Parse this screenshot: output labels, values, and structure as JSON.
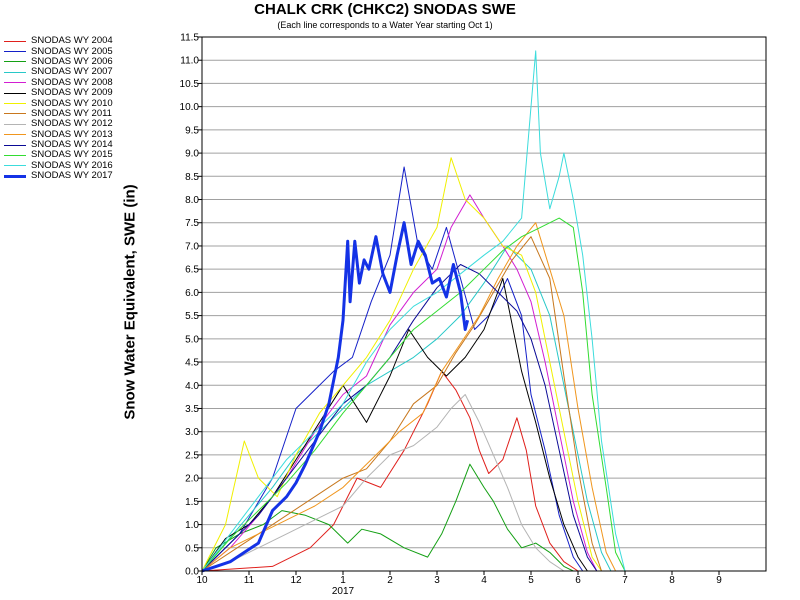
{
  "chart_data": {
    "type": "line",
    "title": "CHALK CRK (CHKC2) SNODAS SWE",
    "subtitle": "(Each line corresponds to a Water Year starting Oct 1)",
    "ylabel": "Snow Water Equivalent, SWE (in)",
    "xlabel": "",
    "ylim": [
      0,
      11.5
    ],
    "yticks": [
      "0.0",
      "0.5",
      "1.0",
      "1.5",
      "2.0",
      "2.5",
      "3.0",
      "3.5",
      "4.0",
      "4.5",
      "5.0",
      "5.5",
      "6.0",
      "6.5",
      "7.0",
      "7.5",
      "8.0",
      "8.5",
      "9.0",
      "9.5",
      "10.0",
      "10.5",
      "11.0",
      "11.5"
    ],
    "xlim": [
      10,
      22
    ],
    "xticks": [
      {
        "x": 10,
        "label": "10"
      },
      {
        "x": 11,
        "label": "11"
      },
      {
        "x": 12,
        "label": "12"
      },
      {
        "x": 13,
        "label": "1"
      },
      {
        "x": 14,
        "label": "2"
      },
      {
        "x": 15,
        "label": "3"
      },
      {
        "x": 16,
        "label": "4"
      },
      {
        "x": 17,
        "label": "5"
      },
      {
        "x": 18,
        "label": "6"
      },
      {
        "x": 19,
        "label": "7"
      },
      {
        "x": 20,
        "label": "8"
      },
      {
        "x": 21,
        "label": "9"
      }
    ],
    "year_label": "2017",
    "grid": true,
    "legend_position": "top-left, outside plot",
    "series": [
      {
        "name": "SNODAS WY 2004",
        "color": "#e0201c",
        "width": 1,
        "x": [
          10,
          11.5,
          12.3,
          12.8,
          13.3,
          13.8,
          14.3,
          14.8,
          15.1,
          15.4,
          15.7,
          15.9,
          16.1,
          16.4,
          16.7,
          16.9,
          17.1,
          17.4,
          17.7,
          18.0
        ],
        "y": [
          0,
          0.1,
          0.5,
          1.0,
          2.0,
          1.8,
          2.6,
          3.6,
          4.3,
          3.9,
          3.3,
          2.6,
          2.1,
          2.4,
          3.3,
          2.6,
          1.4,
          0.6,
          0.2,
          0
        ]
      },
      {
        "name": "SNODAS WY 2005",
        "color": "#1420c8",
        "width": 1,
        "x": [
          10,
          10.8,
          11.5,
          12.0,
          12.4,
          12.8,
          13.2,
          13.6,
          14.0,
          14.3,
          14.6,
          14.9,
          15.2,
          15.5,
          15.8,
          16.1,
          16.5,
          16.8,
          17.0,
          17.3,
          17.6,
          17.9,
          18.1
        ],
        "y": [
          0,
          0.8,
          2.0,
          3.5,
          3.9,
          4.3,
          4.6,
          5.8,
          6.8,
          8.7,
          7.0,
          6.5,
          7.4,
          6.3,
          5.2,
          5.5,
          6.3,
          5.5,
          3.8,
          2.6,
          1.2,
          0.3,
          0
        ]
      },
      {
        "name": "SNODAS WY 2006",
        "color": "#14a014",
        "width": 1,
        "x": [
          10,
          10.3,
          10.8,
          11.3,
          11.7,
          12.2,
          12.7,
          13.1,
          13.4,
          13.8,
          14.3,
          14.8,
          15.1,
          15.4,
          15.7,
          16.0,
          16.2,
          16.5,
          16.8,
          17.1,
          17.4,
          17.7,
          17.9
        ],
        "y": [
          0,
          0.5,
          0.8,
          1.0,
          1.3,
          1.2,
          1.0,
          0.6,
          0.9,
          0.8,
          0.5,
          0.3,
          0.8,
          1.5,
          2.3,
          1.8,
          1.5,
          0.9,
          0.5,
          0.6,
          0.4,
          0.1,
          0
        ]
      },
      {
        "name": "SNODAS WY 2007",
        "color": "#28c8c8",
        "width": 1,
        "x": [
          10,
          10.5,
          11.0,
          11.5,
          12.0,
          12.5,
          13.0,
          13.5,
          14.0,
          14.5,
          15.0,
          15.5,
          16.0,
          16.5,
          17.0,
          17.4,
          17.8,
          18.2,
          18.5,
          18.7
        ],
        "y": [
          0,
          0.6,
          1.2,
          1.8,
          2.5,
          3.0,
          3.5,
          4.0,
          4.3,
          4.6,
          5.0,
          5.5,
          6.2,
          7.0,
          6.5,
          5.5,
          3.5,
          1.5,
          0.4,
          0
        ]
      },
      {
        "name": "SNODAS WY 2008",
        "color": "#d21ed2",
        "width": 1,
        "x": [
          10,
          10.6,
          11.2,
          11.8,
          12.4,
          13.0,
          13.5,
          14.0,
          14.5,
          15.0,
          15.3,
          15.7,
          16.0,
          16.4,
          16.7,
          17.0,
          17.3,
          17.6,
          17.9,
          18.2,
          18.4
        ],
        "y": [
          0,
          0.5,
          1.2,
          2.0,
          3.0,
          3.8,
          4.2,
          5.3,
          6.0,
          6.5,
          7.4,
          8.1,
          7.6,
          7.0,
          6.5,
          5.8,
          4.5,
          3.0,
          1.5,
          0.4,
          0
        ]
      },
      {
        "name": "SNODAS WY 2009",
        "color": "#000000",
        "width": 1,
        "x": [
          10,
          10.5,
          11.0,
          11.5,
          12.0,
          12.5,
          13.0,
          13.5,
          14.0,
          14.4,
          14.8,
          15.2,
          15.6,
          16.0,
          16.4,
          16.8,
          17.1,
          17.4,
          17.7,
          18.0,
          18.2
        ],
        "y": [
          0,
          0.7,
          1.0,
          1.6,
          2.4,
          3.2,
          4.0,
          3.2,
          4.2,
          5.2,
          4.6,
          4.2,
          4.6,
          5.2,
          6.3,
          4.3,
          3.2,
          2.0,
          1.0,
          0.3,
          0
        ]
      },
      {
        "name": "SNODAS WY 2010",
        "color": "#f0f000",
        "width": 1,
        "x": [
          10,
          10.5,
          10.9,
          11.2,
          11.6,
          12.0,
          12.5,
          13.0,
          13.5,
          14.0,
          14.5,
          15.0,
          15.3,
          15.6,
          16.0,
          16.4,
          16.8,
          17.1,
          17.4,
          17.7,
          18.0,
          18.3,
          18.5
        ],
        "y": [
          0,
          1.0,
          2.8,
          2.0,
          1.6,
          2.5,
          3.4,
          4.0,
          4.6,
          5.4,
          6.5,
          7.4,
          8.9,
          8.0,
          7.6,
          7.0,
          6.8,
          6.0,
          4.5,
          3.0,
          1.5,
          0.3,
          0
        ]
      },
      {
        "name": "SNODAS WY 2011",
        "color": "#c8781e",
        "width": 1,
        "x": [
          10,
          10.6,
          11.2,
          11.8,
          12.4,
          13.0,
          13.5,
          14.0,
          14.5,
          15.0,
          15.4,
          15.8,
          16.2,
          16.6,
          17.0,
          17.4,
          17.7,
          18.0,
          18.3,
          18.5
        ],
        "y": [
          0,
          0.4,
          0.8,
          1.2,
          1.6,
          2.0,
          2.2,
          2.8,
          3.6,
          4.0,
          4.7,
          5.3,
          6.0,
          6.7,
          7.2,
          6.3,
          4.2,
          2.2,
          0.6,
          0
        ]
      },
      {
        "name": "SNODAS WY 2012",
        "color": "#b4b4b4",
        "width": 1,
        "x": [
          10,
          10.6,
          11.2,
          11.8,
          12.4,
          13.0,
          13.5,
          14.0,
          14.5,
          15.0,
          15.3,
          15.6,
          15.9,
          16.2,
          16.5,
          16.8,
          17.1,
          17.4,
          17.7
        ],
        "y": [
          0,
          0.2,
          0.5,
          0.8,
          1.1,
          1.4,
          2.0,
          2.5,
          2.7,
          3.1,
          3.5,
          3.8,
          3.2,
          2.5,
          1.8,
          1.0,
          0.5,
          0.2,
          0
        ]
      },
      {
        "name": "SNODAS WY 2013",
        "color": "#f0961e",
        "width": 1,
        "x": [
          10,
          10.6,
          11.2,
          11.8,
          12.4,
          13.0,
          13.6,
          14.2,
          14.7,
          15.1,
          15.5,
          15.9,
          16.3,
          16.7,
          17.1,
          17.4,
          17.7,
          18.0,
          18.3,
          18.6,
          18.8
        ],
        "y": [
          0,
          0.5,
          0.8,
          1.1,
          1.4,
          1.8,
          2.4,
          3.0,
          3.4,
          4.3,
          4.9,
          5.5,
          6.3,
          7.0,
          7.5,
          6.5,
          5.5,
          3.5,
          1.8,
          0.4,
          0
        ]
      },
      {
        "name": "SNODAS WY 2014",
        "color": "#0a0a96",
        "width": 1,
        "x": [
          10,
          10.6,
          11.2,
          11.8,
          12.4,
          13.0,
          13.5,
          14.0,
          14.5,
          15.0,
          15.5,
          15.9,
          16.3,
          16.7,
          17.0,
          17.3,
          17.6,
          17.9,
          18.2,
          18.4
        ],
        "y": [
          0,
          0.6,
          1.2,
          2.0,
          2.8,
          3.6,
          4.0,
          4.6,
          5.4,
          6.1,
          6.6,
          6.4,
          6.0,
          5.6,
          5.0,
          4.0,
          2.6,
          1.2,
          0.3,
          0
        ]
      },
      {
        "name": "SNODAS WY 2015",
        "color": "#32dc32",
        "width": 1,
        "x": [
          10,
          10.6,
          11.2,
          11.8,
          12.4,
          13.0,
          13.5,
          14.0,
          14.5,
          15.0,
          15.5,
          16.0,
          16.4,
          16.8,
          17.2,
          17.6,
          17.9,
          18.1,
          18.3,
          18.6,
          18.8,
          19.0
        ],
        "y": [
          0,
          0.7,
          1.3,
          1.9,
          2.6,
          3.4,
          4.0,
          4.6,
          5.2,
          5.6,
          6.0,
          6.5,
          6.9,
          7.2,
          7.4,
          7.6,
          7.4,
          6.0,
          3.8,
          1.8,
          0.4,
          0
        ]
      },
      {
        "name": "SNODAS WY 2016",
        "color": "#3cdcdc",
        "width": 1,
        "x": [
          10,
          10.6,
          11.2,
          11.8,
          12.4,
          13.0,
          13.5,
          14.0,
          14.5,
          15.0,
          15.5,
          16.0,
          16.4,
          16.8,
          17.0,
          17.1,
          17.2,
          17.4,
          17.6,
          17.7,
          17.9,
          18.1,
          18.3,
          18.5,
          18.8,
          19.0
        ],
        "y": [
          0,
          0.8,
          1.6,
          2.4,
          3.0,
          3.6,
          4.5,
          5.2,
          5.7,
          6.0,
          6.4,
          6.8,
          7.1,
          7.6,
          10.0,
          11.2,
          9.0,
          7.8,
          8.5,
          9.0,
          8.0,
          6.8,
          5.0,
          2.8,
          0.8,
          0
        ]
      },
      {
        "name": "SNODAS WY 2017",
        "color": "#1432e6",
        "width": 3,
        "x": [
          10.0,
          10.3,
          10.6,
          10.9,
          11.2,
          11.5,
          11.8,
          12.0,
          12.2,
          12.5,
          12.7,
          12.9,
          13.0,
          13.1,
          13.15,
          13.25,
          13.35,
          13.45,
          13.55,
          13.7,
          13.85,
          14.0,
          14.15,
          14.3,
          14.45,
          14.6,
          14.75,
          14.9,
          15.05,
          15.2,
          15.35,
          15.5,
          15.6,
          15.65
        ],
        "y": [
          0.0,
          0.1,
          0.2,
          0.4,
          0.6,
          1.3,
          1.6,
          1.9,
          2.3,
          3.0,
          3.6,
          4.6,
          5.4,
          7.1,
          5.8,
          7.1,
          6.2,
          6.7,
          6.5,
          7.2,
          6.4,
          6.0,
          6.8,
          7.5,
          6.6,
          7.1,
          6.8,
          6.2,
          6.3,
          5.9,
          6.6,
          6.0,
          5.2,
          5.4
        ]
      }
    ]
  }
}
